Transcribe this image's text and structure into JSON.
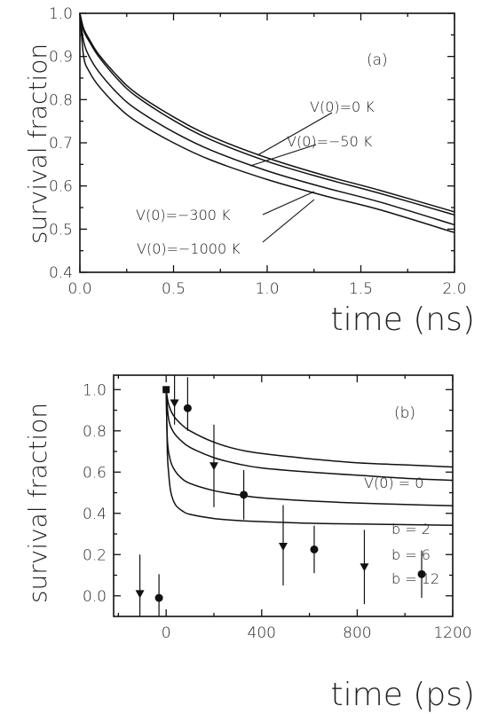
{
  "chart_data": [
    {
      "id": "a",
      "type": "line",
      "panel_label": "(a)",
      "xlabel": "time (ns)",
      "ylabel": "survival fraction",
      "xlim": [
        0.0,
        2.0
      ],
      "ylim": [
        0.4,
        1.0
      ],
      "xticks": [
        0.0,
        0.5,
        1.0,
        1.5,
        2.0
      ],
      "xtick_labels": [
        "0.0",
        "0.5",
        "1.0",
        "1.5",
        "2.0"
      ],
      "yticks": [
        0.4,
        0.5,
        0.6,
        0.7,
        0.8,
        0.9,
        1.0
      ],
      "ytick_labels": [
        "0.4",
        "0.5",
        "0.6",
        "0.7",
        "0.8",
        "0.9",
        "1.0"
      ],
      "grid": false,
      "series": [
        {
          "name": "V(0)=0 K",
          "x": [
            0.0,
            0.02,
            0.05,
            0.1,
            0.2,
            0.3,
            0.5,
            0.7,
            1.0,
            1.3,
            1.6,
            2.0
          ],
          "y": [
            1.0,
            0.965,
            0.94,
            0.905,
            0.855,
            0.815,
            0.76,
            0.715,
            0.665,
            0.625,
            0.59,
            0.54
          ]
        },
        {
          "name": "V(0)=−50 K",
          "x": [
            0.0,
            0.02,
            0.05,
            0.1,
            0.2,
            0.3,
            0.5,
            0.7,
            1.0,
            1.3,
            1.6,
            2.0
          ],
          "y": [
            1.0,
            0.96,
            0.935,
            0.9,
            0.848,
            0.808,
            0.752,
            0.707,
            0.657,
            0.618,
            0.583,
            0.533
          ]
        },
        {
          "name": "V(0)=−300 K",
          "x": [
            0.0,
            0.02,
            0.05,
            0.1,
            0.2,
            0.3,
            0.5,
            0.7,
            1.0,
            1.3,
            1.6,
            2.0
          ],
          "y": [
            1.0,
            0.935,
            0.9,
            0.865,
            0.815,
            0.778,
            0.725,
            0.683,
            0.635,
            0.597,
            0.563,
            0.51
          ]
        },
        {
          "name": "V(0)=−1000 K",
          "x": [
            0.0,
            0.02,
            0.05,
            0.1,
            0.2,
            0.3,
            0.5,
            0.7,
            1.0,
            1.3,
            1.6,
            2.0
          ],
          "y": [
            1.0,
            0.9,
            0.865,
            0.832,
            0.785,
            0.75,
            0.7,
            0.66,
            0.615,
            0.578,
            0.545,
            0.492
          ]
        }
      ],
      "annotations": [
        "V(0)=0 K",
        "V(0)=−50 K",
        "V(0)=−300 K",
        "V(0)=−1000 K"
      ]
    },
    {
      "id": "b",
      "type": "line",
      "panel_label": "(b)",
      "xlabel": "time (ps)",
      "ylabel": "survival fraction",
      "xlim": [
        -220,
        1200
      ],
      "ylim": [
        -0.1,
        1.07
      ],
      "xticks": [
        0,
        400,
        800,
        1200
      ],
      "xtick_labels": [
        "0",
        "400",
        "800",
        "1200"
      ],
      "yticks": [
        0.0,
        0.2,
        0.4,
        0.6,
        0.8,
        1.0
      ],
      "ytick_labels": [
        "0.0",
        "0.2",
        "0.4",
        "0.6",
        "0.8",
        "1.0"
      ],
      "grid": false,
      "series": [
        {
          "name": "V(0) = 0",
          "x": [
            0,
            10,
            30,
            60,
            100,
            200,
            300,
            400,
            600,
            800,
            1000,
            1200
          ],
          "y": [
            1.0,
            0.93,
            0.875,
            0.835,
            0.8,
            0.745,
            0.71,
            0.69,
            0.665,
            0.645,
            0.635,
            0.625
          ]
        },
        {
          "name": "b = 2",
          "x": [
            0,
            10,
            30,
            60,
            100,
            200,
            300,
            400,
            600,
            800,
            1000,
            1200
          ],
          "y": [
            1.0,
            0.86,
            0.795,
            0.755,
            0.72,
            0.67,
            0.64,
            0.62,
            0.6,
            0.585,
            0.57,
            0.56
          ]
        },
        {
          "name": "b = 6",
          "x": [
            0,
            5,
            15,
            30,
            60,
            100,
            200,
            300,
            400,
            600,
            800,
            1000,
            1200
          ],
          "y": [
            1.0,
            0.76,
            0.67,
            0.62,
            0.575,
            0.545,
            0.51,
            0.49,
            0.475,
            0.46,
            0.45,
            0.443,
            0.437
          ]
        },
        {
          "name": "b = 12",
          "x": [
            0,
            5,
            10,
            20,
            40,
            70,
            100,
            200,
            300,
            400,
            600,
            800,
            1000,
            1200
          ],
          "y": [
            1.0,
            0.7,
            0.6,
            0.5,
            0.44,
            0.41,
            0.395,
            0.375,
            0.365,
            0.36,
            0.352,
            0.348,
            0.345,
            0.342
          ]
        }
      ],
      "points": [
        {
          "marker": "triangle",
          "x": -110,
          "y": 0.01,
          "err_low": -0.1,
          "err_high": 0.2
        },
        {
          "marker": "circle",
          "x": -30,
          "y": -0.01,
          "err_low": -0.1,
          "err_high": 0.105
        },
        {
          "marker": "square",
          "x": 0,
          "y": 1.0,
          "err_low": 1.0,
          "err_high": 1.0
        },
        {
          "marker": "triangle",
          "x": 35,
          "y": 0.935,
          "err_low": 0.83,
          "err_high": 1.07
        },
        {
          "marker": "circle",
          "x": 90,
          "y": 0.91,
          "err_low": 0.8,
          "err_high": 1.06
        },
        {
          "marker": "triangle",
          "x": 200,
          "y": 0.63,
          "err_low": 0.43,
          "err_high": 0.83
        },
        {
          "marker": "circle",
          "x": 325,
          "y": 0.49,
          "err_low": 0.37,
          "err_high": 0.61
        },
        {
          "marker": "triangle",
          "x": 490,
          "y": 0.24,
          "err_low": 0.05,
          "err_high": 0.44
        },
        {
          "marker": "circle",
          "x": 620,
          "y": 0.225,
          "err_low": 0.11,
          "err_high": 0.34
        },
        {
          "marker": "triangle",
          "x": 830,
          "y": 0.14,
          "err_low": -0.04,
          "err_high": 0.32
        },
        {
          "marker": "circle",
          "x": 1070,
          "y": 0.105,
          "err_low": -0.01,
          "err_high": 0.22
        }
      ],
      "annotations": [
        "V(0) = 0",
        "b = 2",
        "b = 6",
        "b = 12"
      ]
    }
  ]
}
